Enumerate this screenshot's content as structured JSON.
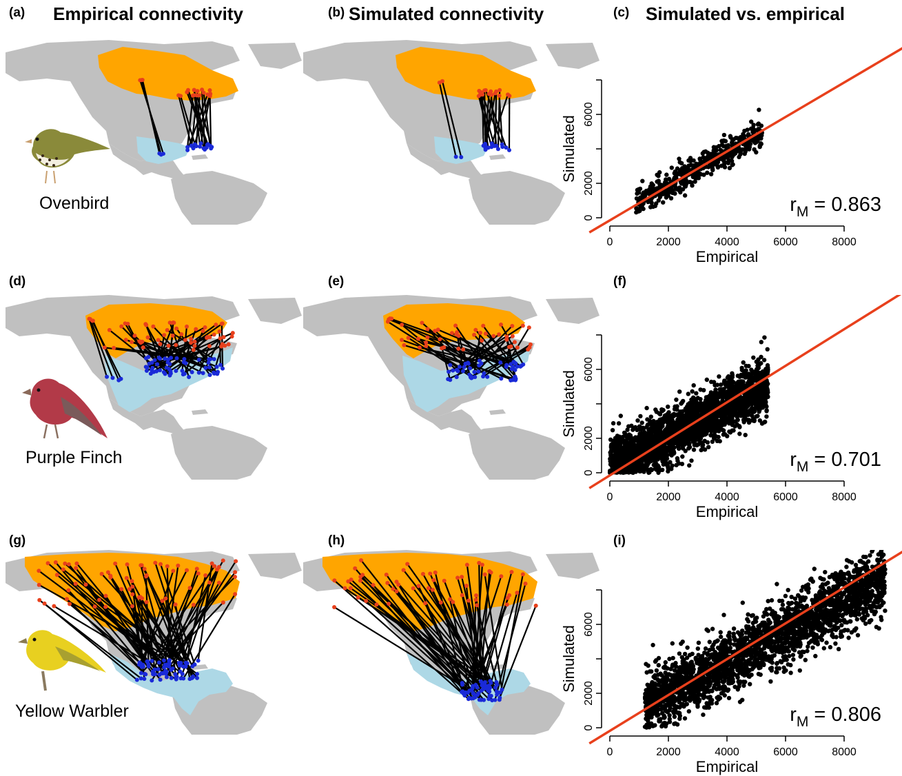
{
  "column_titles": {
    "a": {
      "letter": "(a)",
      "title": "Empirical connectivity"
    },
    "b": {
      "letter": "(b)",
      "title": "Simulated connectivity"
    },
    "c": {
      "letter": "(c)",
      "title": "Simulated vs. empirical"
    }
  },
  "rows": [
    {
      "map_letters": [
        "(a)",
        "(b)"
      ],
      "scatter_letter": "(c)",
      "species": "Ovenbird"
    },
    {
      "map_letters": [
        "(d)",
        "(e)"
      ],
      "scatter_letter": "(f)",
      "species": "Purple Finch"
    },
    {
      "map_letters": [
        "(g)",
        "(h)"
      ],
      "scatter_letter": "(i)",
      "species": "Yellow Warbler"
    }
  ],
  "colors": {
    "land": "#c0c0c0",
    "breeding_range": "#ffa500",
    "wintering_range": "#add8e6",
    "breeding_point": "#e8401c",
    "wintering_point": "#1a2ad8",
    "fit_line": "#e8401c",
    "scatter_point": "#000000",
    "ovenbird_body": "#8a8a3a",
    "finch_body": "#b23a48",
    "warbler_body": "#e8d020"
  },
  "chart_data": [
    {
      "type": "scatter",
      "panel": "(c)",
      "title": "Simulated vs. empirical",
      "xlabel": "Empirical",
      "ylabel": "Simulated",
      "xlim": [
        0,
        8000
      ],
      "ylim": [
        0,
        8000
      ],
      "xticks": [
        "0",
        "2000",
        "4000",
        "6000",
        "8000"
      ],
      "yticks": [
        "0",
        "2000",
        "6000"
      ],
      "r_prefix": "r",
      "r_sub": "M",
      "r_value": "= 0.863",
      "fit_line": {
        "intercept": -150,
        "slope": 1.0
      },
      "point_cloud": {
        "n": 500,
        "x_range": [
          900,
          5200
        ],
        "slope": 0.95,
        "intercept": 0,
        "spread": 380,
        "seed": 7
      }
    },
    {
      "type": "scatter",
      "panel": "(f)",
      "xlabel": "Empirical",
      "ylabel": "Simulated",
      "xlim": [
        0,
        8000
      ],
      "ylim": [
        0,
        8000
      ],
      "xticks": [
        "0",
        "2000",
        "4000",
        "6000",
        "8000"
      ],
      "yticks": [
        "0",
        "2000",
        "6000"
      ],
      "r_prefix": "r",
      "r_sub": "M",
      "r_value": "= 0.701",
      "fit_line": {
        "intercept": -150,
        "slope": 1.06
      },
      "point_cloud": {
        "n": 2600,
        "x_range": [
          0,
          5400
        ],
        "slope": 0.9,
        "intercept": 300,
        "spread": 750,
        "seed": 11
      }
    },
    {
      "type": "scatter",
      "panel": "(i)",
      "xlabel": "Empirical",
      "ylabel": "Simulated",
      "xlim": [
        0,
        8000
      ],
      "ylim": [
        0,
        8000
      ],
      "xticks": [
        "0",
        "2000",
        "4000",
        "6000",
        "8000"
      ],
      "yticks": [
        "0",
        "2000",
        "6000"
      ],
      "r_prefix": "r",
      "r_sub": "M",
      "r_value": "= 0.806",
      "fit_line": {
        "intercept": -180,
        "slope": 1.04
      },
      "point_cloud": {
        "n": 2600,
        "x_range": [
          1200,
          9400
        ],
        "slope": 0.88,
        "intercept": 300,
        "spread": 900,
        "seed": 23
      }
    }
  ]
}
